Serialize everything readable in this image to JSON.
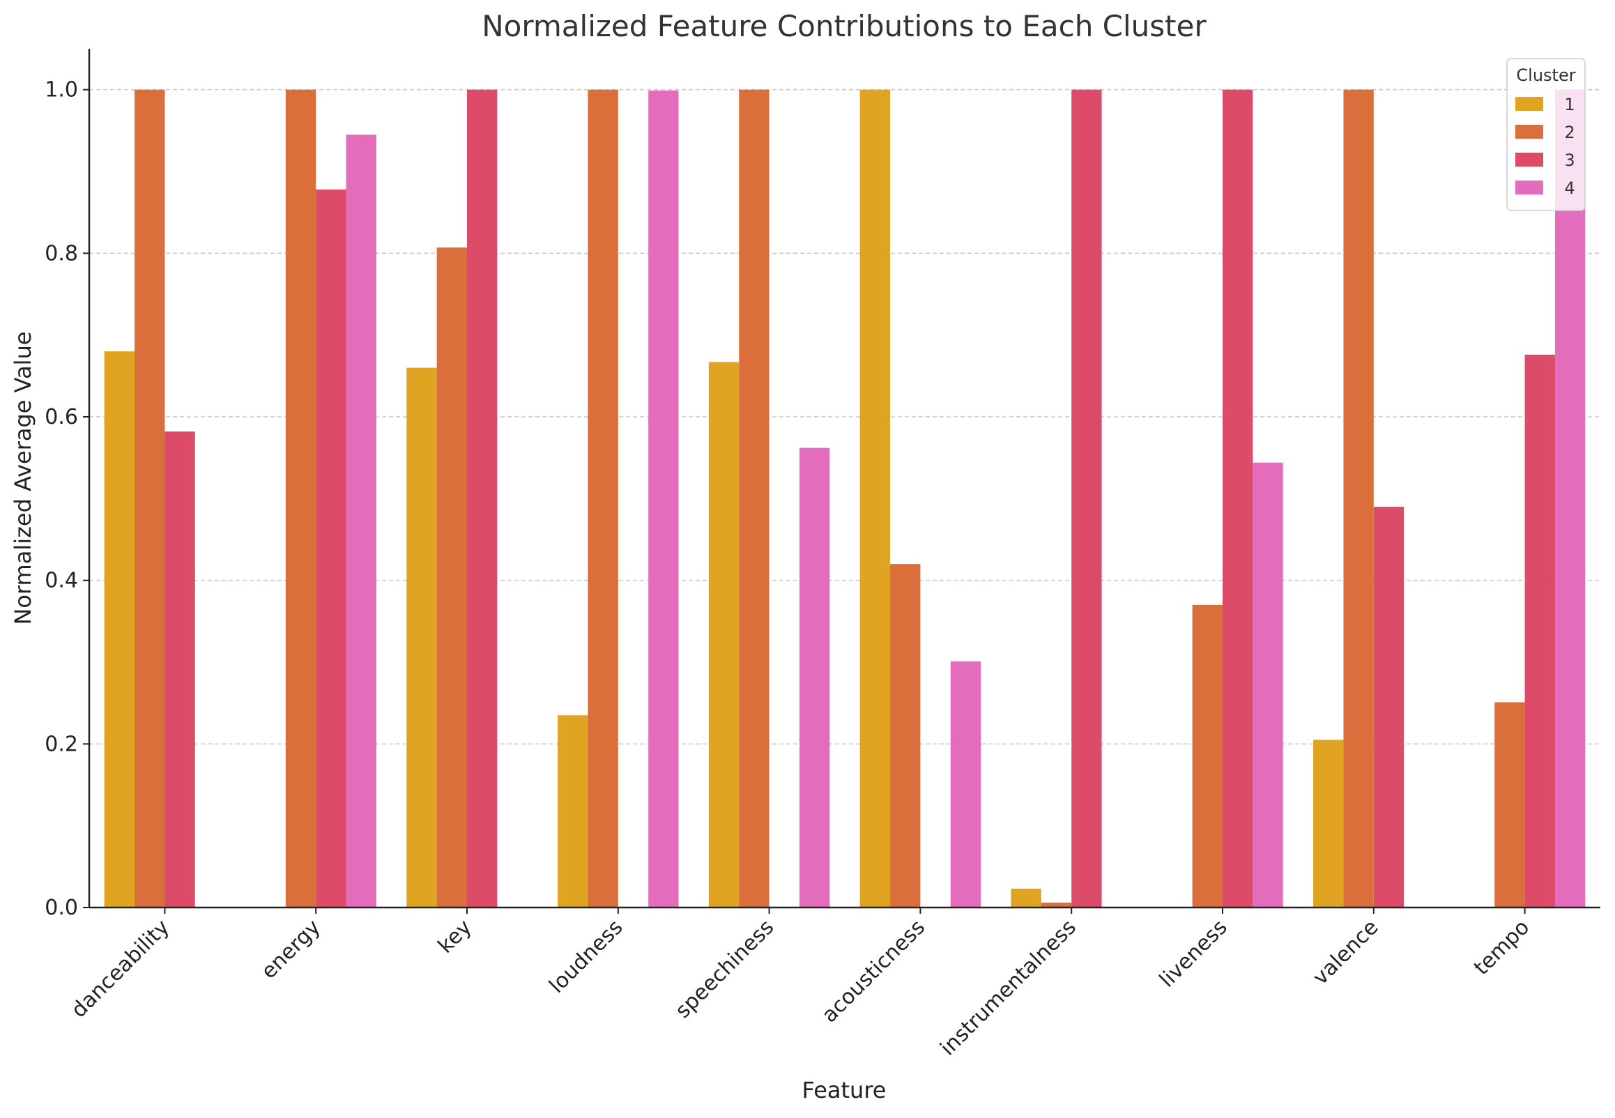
{
  "chart_data": {
    "type": "bar",
    "title": "Normalized Feature Contributions to Each Cluster",
    "xlabel": "Feature",
    "ylabel": "Normalized Average Value",
    "ylim": [
      0,
      1.05
    ],
    "yticks": [
      0.0,
      0.2,
      0.4,
      0.6,
      0.8,
      1.0
    ],
    "ytick_labels": [
      "0.0",
      "0.2",
      "0.4",
      "0.6",
      "0.8",
      "1.0"
    ],
    "grid": "horizontal dashed",
    "legend_title": "Cluster",
    "legend_position": "top-right",
    "categories": [
      "danceability",
      "energy",
      "key",
      "loudness",
      "speechiness",
      "acousticness",
      "instrumentalness",
      "liveness",
      "valence",
      "tempo"
    ],
    "series": [
      {
        "name": "1",
        "color": "#e0a322",
        "values": [
          0.68,
          0.0,
          0.66,
          0.235,
          0.667,
          1.0,
          0.023,
          0.0,
          0.205,
          0.0
        ]
      },
      {
        "name": "2",
        "color": "#db6f3b",
        "values": [
          1.0,
          1.0,
          0.807,
          1.0,
          1.0,
          0.42,
          0.006,
          0.37,
          1.0,
          0.251
        ]
      },
      {
        "name": "3",
        "color": "#dc4b67",
        "values": [
          0.582,
          0.878,
          1.0,
          0.0,
          0.0,
          0.0,
          1.0,
          1.0,
          0.49,
          0.676
        ]
      },
      {
        "name": "4",
        "color": "#e36cbd",
        "values": [
          0.0,
          0.945,
          0.0,
          0.999,
          0.562,
          0.301,
          0.0,
          0.544,
          0.0,
          1.0
        ]
      }
    ]
  }
}
